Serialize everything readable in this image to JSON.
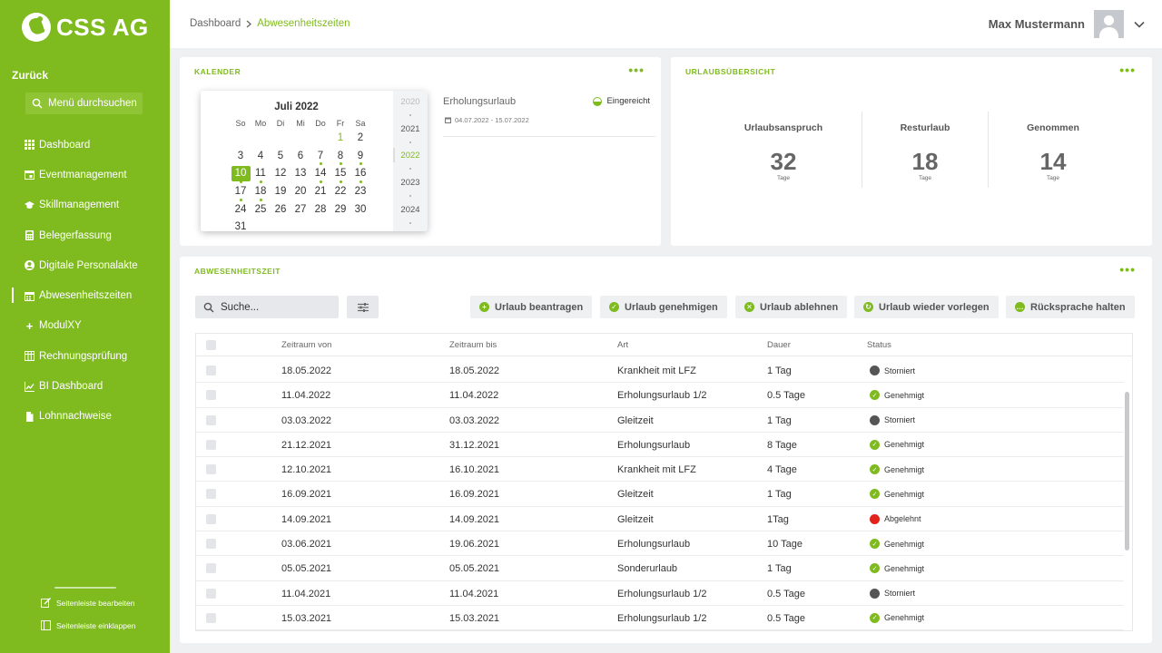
{
  "sidebar": {
    "brand": "CSS AG",
    "back_label": "Zurück",
    "search_label": "Menü durchsuchen",
    "items": [
      {
        "label": "Dashboard",
        "icon": "grid-icon"
      },
      {
        "label": "Eventmanagement",
        "icon": "calendar-icon"
      },
      {
        "label": "Skillmanagement",
        "icon": "graduation-cap-icon"
      },
      {
        "label": "Belegerfassung",
        "icon": "calculator-icon"
      },
      {
        "label": "Digitale Personalakte",
        "icon": "user-circle-icon"
      },
      {
        "label": "Abwesenheitszeiten",
        "icon": "calendar-icon",
        "active": true
      },
      {
        "label": "ModulXY",
        "icon": "plus-icon"
      },
      {
        "label": "Rechnungsprüfung",
        "icon": "table-icon"
      },
      {
        "label": "BI Dashboard",
        "icon": "chart-icon"
      },
      {
        "label": "Lohnnachweise",
        "icon": "file-icon"
      }
    ],
    "edit_label": "Seitenleiste bearbeiten",
    "collapse_label": "Seitenleiste einklappen"
  },
  "header": {
    "breadcrumb_root": "Dashboard",
    "breadcrumb_current": "Abwesenheitszeiten",
    "user_name": "Max Mustermann"
  },
  "kalender": {
    "title": "KALENDER",
    "month": "Juli 2022",
    "weekdays": [
      "So",
      "Mo",
      "Di",
      "Mi",
      "Do",
      "Fr",
      "Sa"
    ],
    "years": [
      "2020",
      "2021",
      "2022",
      "2023",
      "2024"
    ],
    "selected_year": "2022",
    "selected_day": 10,
    "event_title": "Erholungsurlaub",
    "event_status": "Eingereicht",
    "event_date": "04.07.2022 - 15.07.2022"
  },
  "uebersicht": {
    "title": "URLAUBSÜBERSICHT",
    "stats": [
      {
        "label": "Urlaubsanspruch",
        "value": "32",
        "unit": "Tage"
      },
      {
        "label": "Resturlaub",
        "value": "18",
        "unit": "Tage"
      },
      {
        "label": "Genommen",
        "value": "14",
        "unit": "Tage"
      }
    ]
  },
  "abwesenheit": {
    "title": "ABWESENHEITSZEIT",
    "search_placeholder": "Suche...",
    "actions": [
      {
        "label": "Urlaub beantragen",
        "symbol": "+"
      },
      {
        "label": "Urlaub genehmigen",
        "symbol": "✓"
      },
      {
        "label": "Urlaub ablehnen",
        "symbol": "✕"
      },
      {
        "label": "Urlaub wieder vorlegen",
        "symbol": "↻"
      },
      {
        "label": "Rücksprache halten",
        "symbol": "…"
      }
    ],
    "columns": [
      "Zeitraum von",
      "Zeitraum bis",
      "Art",
      "Dauer",
      "Status"
    ],
    "rows": [
      {
        "von": "18.05.2022",
        "bis": "18.05.2022",
        "art": "Krankheit mit LFZ",
        "dauer": "1 Tag",
        "status": "Storniert"
      },
      {
        "von": "11.04.2022",
        "bis": "11.04.2022",
        "art": "Erholungsurlaub 1/2",
        "dauer": "0.5 Tage",
        "status": "Genehmigt"
      },
      {
        "von": "03.03.2022",
        "bis": "03.03.2022",
        "art": "Gleitzeit",
        "dauer": "1 Tag",
        "status": "Storniert"
      },
      {
        "von": "21.12.2021",
        "bis": "31.12.2021",
        "art": "Erholungsurlaub",
        "dauer": "8 Tage",
        "status": "Genehmigt"
      },
      {
        "von": "12.10.2021",
        "bis": "16.10.2021",
        "art": "Krankheit mit LFZ",
        "dauer": "4 Tage",
        "status": "Genehmigt"
      },
      {
        "von": "16.09.2021",
        "bis": "16.09.2021",
        "art": "Gleitzeit",
        "dauer": "1 Tag",
        "status": "Genehmigt"
      },
      {
        "von": "14.09.2021",
        "bis": "14.09.2021",
        "art": "Gleitzeit",
        "dauer": "1Tag",
        "status": "Abgelehnt"
      },
      {
        "von": "03.06.2021",
        "bis": "19.06.2021",
        "art": "Erholungsurlaub",
        "dauer": "10 Tage",
        "status": "Genehmigt"
      },
      {
        "von": "05.05.2021",
        "bis": "05.05.2021",
        "art": "Sonderurlaub",
        "dauer": "1 Tag",
        "status": "Genehmigt"
      },
      {
        "von": "11.04.2021",
        "bis": "11.04.2021",
        "art": "Erholungsurlaub 1/2",
        "dauer": "0.5 Tage",
        "status": "Storniert"
      },
      {
        "von": "15.03.2021",
        "bis": "15.03.2021",
        "art": "Erholungsurlaub 1/2",
        "dauer": "0.5 Tage",
        "status": "Genehmigt"
      }
    ]
  },
  "colors": {
    "accent": "#7fbb1f",
    "storniert": "#555555",
    "genehmigt": "#7fbb1f",
    "abgelehnt": "#e0241c"
  }
}
